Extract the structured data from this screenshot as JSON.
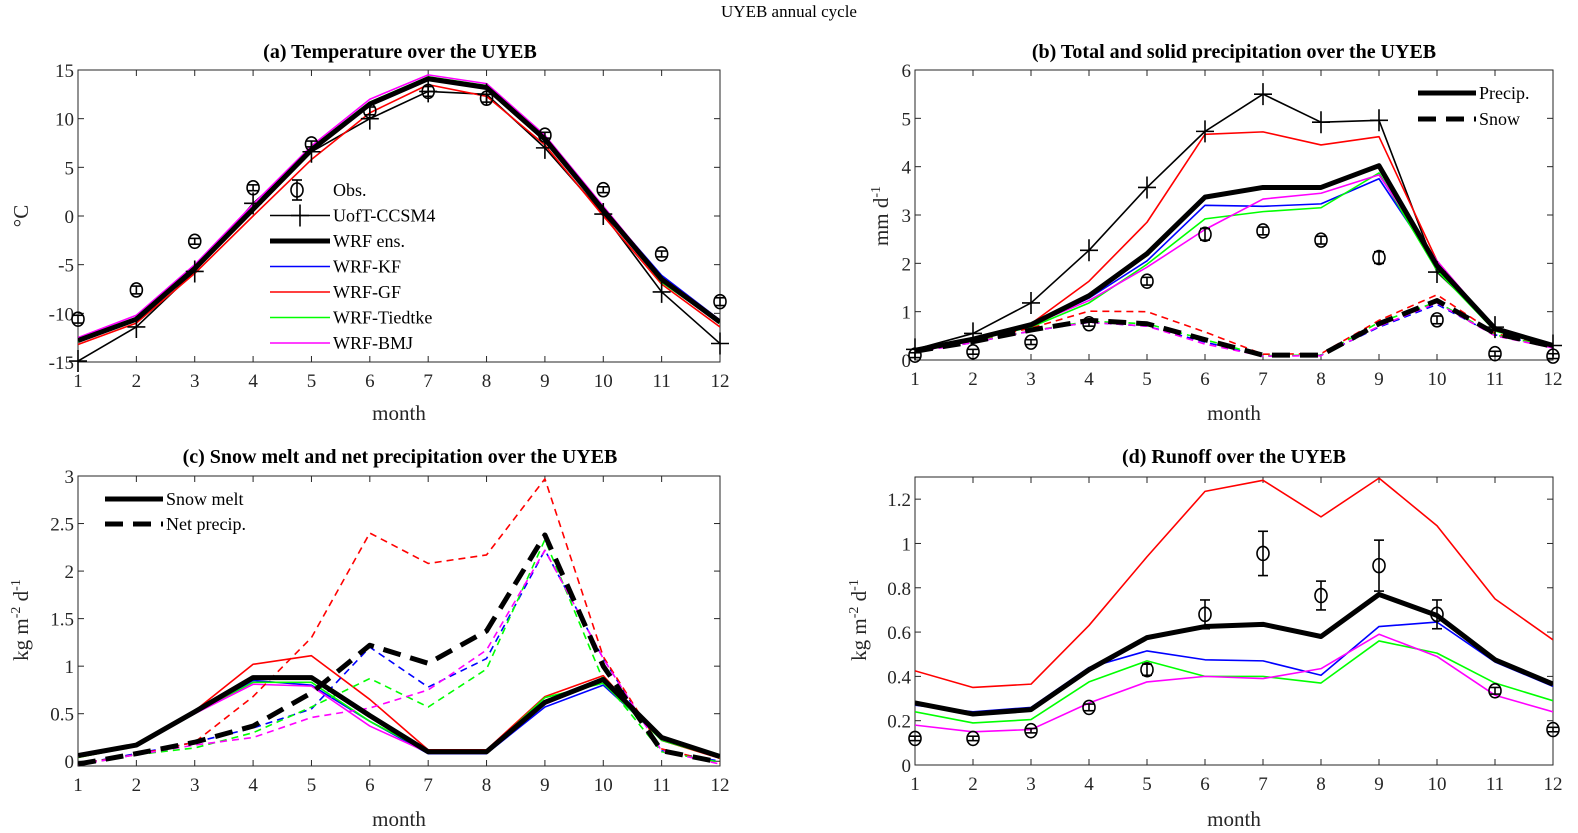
{
  "suptitle": "UYEB annual cycle",
  "colors": {
    "obs": "#000000",
    "UofT-CCSM4": "#000000",
    "WRF ens.": "#000000",
    "WRF-KF": "#0000ff",
    "WRF-GF": "#ff0000",
    "WRF-Tiedtke": "#00ff00",
    "WRF-BMJ": "#ff00ff"
  },
  "chart_data": [
    {
      "id": "a",
      "type": "line",
      "title": "(a) Temperature over the UYEB",
      "xlabel": "month",
      "ylabel": "°C",
      "x": [
        1,
        2,
        3,
        4,
        5,
        6,
        7,
        8,
        9,
        10,
        11,
        12
      ],
      "xlim": [
        1,
        12
      ],
      "ylim": [
        -15,
        15
      ],
      "yticks": [
        -15,
        -10,
        -5,
        0,
        5,
        10,
        15
      ],
      "grid": false,
      "legend": {
        "placement": "center",
        "entries": [
          "Obs.",
          "UofT-CCSM4",
          "WRF ens.",
          "WRF-KF",
          "WRF-GF",
          "WRF-Tiedtke",
          "WRF-BMJ"
        ]
      },
      "obs": {
        "name": "Obs.",
        "values": [
          -10.6,
          -7.6,
          -2.6,
          2.9,
          7.4,
          10.8,
          12.8,
          12.1,
          8.3,
          2.7,
          -3.9,
          -8.8
        ],
        "err": [
          0.4,
          0.4,
          0.3,
          0.3,
          0.3,
          0.4,
          0.5,
          0.4,
          0.3,
          0.3,
          0.3,
          0.4
        ]
      },
      "series": [
        {
          "name": "UofT-CCSM4",
          "style": "thin-plus",
          "values": [
            -14.9,
            -11.4,
            -5.7,
            1.3,
            6.6,
            10.0,
            12.8,
            12.5,
            7.0,
            0.2,
            -7.8,
            -13.1
          ]
        },
        {
          "name": "WRF ens.",
          "style": "thick",
          "values": [
            -12.8,
            -10.6,
            -5.4,
            0.7,
            6.8,
            11.5,
            14.1,
            13.2,
            7.9,
            0.6,
            -6.5,
            -10.9
          ]
        },
        {
          "name": "WRF-KF",
          "style": "thin",
          "values": [
            -12.8,
            -10.5,
            -5.4,
            0.8,
            6.9,
            11.6,
            14.2,
            13.3,
            8.0,
            0.8,
            -6.1,
            -10.7
          ]
        },
        {
          "name": "WRF-GF",
          "style": "thin",
          "values": [
            -13.2,
            -11.0,
            -5.9,
            0.0,
            5.8,
            10.6,
            13.5,
            12.3,
            7.3,
            0.0,
            -7.0,
            -11.4
          ]
        },
        {
          "name": "WRF-Tiedtke",
          "style": "thin",
          "values": [
            -12.9,
            -10.5,
            -5.3,
            0.9,
            7.0,
            11.7,
            14.3,
            13.4,
            8.0,
            0.6,
            -6.8,
            -11.0
          ]
        },
        {
          "name": "WRF-BMJ",
          "style": "thin",
          "values": [
            -12.5,
            -10.2,
            -5.0,
            1.2,
            7.2,
            12.0,
            14.5,
            13.6,
            8.3,
            1.0,
            -6.3,
            -10.7
          ]
        }
      ]
    },
    {
      "id": "b",
      "type": "line",
      "title": "(b) Total and solid precipitation over the UYEB",
      "xlabel": "month",
      "ylabel": "mm d-1",
      "ylabel_main": "mm d",
      "ylabel_sup": "-1",
      "x": [
        1,
        2,
        3,
        4,
        5,
        6,
        7,
        8,
        9,
        10,
        11,
        12
      ],
      "xlim": [
        1,
        12
      ],
      "ylim": [
        0,
        6
      ],
      "yticks": [
        0,
        1,
        2,
        3,
        4,
        5,
        6
      ],
      "grid": false,
      "legend": {
        "placement": "top-right",
        "entries": [
          "Precip.",
          "Snow"
        ]
      },
      "obs": {
        "name": "Obs.",
        "values": [
          0.1,
          0.17,
          0.37,
          0.75,
          1.63,
          2.6,
          2.67,
          2.48,
          2.12,
          0.83,
          0.13,
          0.08
        ],
        "err": [
          0.05,
          0.05,
          0.05,
          0.05,
          0.08,
          0.12,
          0.08,
          0.08,
          0.12,
          0.08,
          0.05,
          0.05
        ]
      },
      "series": [
        {
          "name": "UofT-CCSM4",
          "kind": "precip",
          "style": "thin-plus",
          "values": [
            0.22,
            0.55,
            1.18,
            2.27,
            3.57,
            4.73,
            5.5,
            4.92,
            4.96,
            1.82,
            0.68,
            0.3
          ]
        },
        {
          "name": "WRF ens.",
          "kind": "precip",
          "style": "thick",
          "values": [
            0.2,
            0.43,
            0.73,
            1.33,
            2.2,
            3.37,
            3.57,
            3.57,
            4.02,
            1.95,
            0.65,
            0.3
          ]
        },
        {
          "name": "WRF-KF",
          "kind": "precip",
          "style": "thin",
          "values": [
            0.2,
            0.43,
            0.72,
            1.28,
            2.05,
            3.2,
            3.18,
            3.23,
            3.75,
            1.95,
            0.63,
            0.32
          ]
        },
        {
          "name": "WRF-GF",
          "kind": "precip",
          "style": "thin",
          "values": [
            0.2,
            0.43,
            0.75,
            1.63,
            2.85,
            4.67,
            4.72,
            4.45,
            4.62,
            2.05,
            0.62,
            0.3
          ]
        },
        {
          "name": "WRF-Tiedtke",
          "kind": "precip",
          "style": "thin",
          "values": [
            0.2,
            0.42,
            0.68,
            1.18,
            1.98,
            2.92,
            3.07,
            3.15,
            3.87,
            1.85,
            0.6,
            0.28
          ]
        },
        {
          "name": "WRF-BMJ",
          "kind": "precip",
          "style": "thin",
          "values": [
            0.18,
            0.4,
            0.72,
            1.23,
            1.92,
            2.7,
            3.33,
            3.45,
            3.83,
            2.05,
            0.65,
            0.28
          ]
        },
        {
          "name": "WRF ens.",
          "kind": "snow",
          "style": "thick-dash",
          "values": [
            0.18,
            0.38,
            0.62,
            0.82,
            0.75,
            0.42,
            0.1,
            0.1,
            0.75,
            1.23,
            0.55,
            0.28
          ]
        },
        {
          "name": "WRF-KF",
          "kind": "snow",
          "style": "dash",
          "values": [
            0.17,
            0.36,
            0.6,
            0.78,
            0.7,
            0.37,
            0.08,
            0.1,
            0.68,
            1.15,
            0.52,
            0.27
          ]
        },
        {
          "name": "WRF-GF",
          "kind": "snow",
          "style": "dash",
          "values": [
            0.19,
            0.4,
            0.66,
            1.01,
            1.0,
            0.58,
            0.12,
            0.13,
            0.82,
            1.35,
            0.55,
            0.27
          ]
        },
        {
          "name": "WRF-Tiedtke",
          "kind": "snow",
          "style": "dash",
          "values": [
            0.18,
            0.38,
            0.6,
            0.8,
            0.75,
            0.42,
            0.09,
            0.1,
            0.78,
            1.2,
            0.52,
            0.27
          ]
        },
        {
          "name": "WRF-BMJ",
          "kind": "snow",
          "style": "dash",
          "values": [
            0.16,
            0.36,
            0.6,
            0.78,
            0.7,
            0.33,
            0.08,
            0.09,
            0.7,
            1.18,
            0.5,
            0.25
          ]
        }
      ]
    },
    {
      "id": "c",
      "type": "line",
      "title": "(c) Snow melt and net precipitation over the UYEB",
      "xlabel": "month",
      "ylabel": "kg m-2 d-1",
      "ylabel_parts": [
        "kg m",
        "-2",
        " d",
        "-1"
      ],
      "x": [
        1,
        2,
        3,
        4,
        5,
        6,
        7,
        8,
        9,
        10,
        11,
        12
      ],
      "xlim": [
        1,
        12
      ],
      "ylim": [
        -0.05,
        3
      ],
      "yticks": [
        0,
        0.5,
        1,
        1.5,
        2,
        2.5,
        3
      ],
      "ytick_labels": [
        "0",
        "0.5",
        "1",
        "1.5",
        "2",
        "2.5",
        "3"
      ],
      "grid": false,
      "legend": {
        "placement": "top-left",
        "entries": [
          "Snow melt",
          "Net precip."
        ]
      },
      "series": [
        {
          "name": "WRF ens.",
          "kind": "melt",
          "style": "thick",
          "values": [
            0.06,
            0.17,
            0.52,
            0.88,
            0.88,
            0.48,
            0.1,
            0.1,
            0.62,
            0.86,
            0.25,
            0.05
          ]
        },
        {
          "name": "WRF-KF",
          "kind": "melt",
          "style": "thin",
          "values": [
            0.05,
            0.16,
            0.5,
            0.85,
            0.8,
            0.42,
            0.08,
            0.08,
            0.57,
            0.8,
            0.24,
            0.05
          ]
        },
        {
          "name": "WRF-GF",
          "kind": "melt",
          "style": "thin",
          "values": [
            0.04,
            0.16,
            0.53,
            1.02,
            1.11,
            0.65,
            0.12,
            0.12,
            0.68,
            0.9,
            0.22,
            0.03
          ]
        },
        {
          "name": "WRF-Tiedtke",
          "kind": "melt",
          "style": "thin",
          "values": [
            0.04,
            0.16,
            0.5,
            0.83,
            0.83,
            0.42,
            0.1,
            0.1,
            0.67,
            0.82,
            0.22,
            0.04
          ]
        },
        {
          "name": "WRF-BMJ",
          "kind": "melt",
          "style": "thin",
          "values": [
            0.05,
            0.16,
            0.5,
            0.81,
            0.79,
            0.37,
            0.09,
            0.1,
            0.6,
            0.85,
            0.23,
            0.05
          ]
        },
        {
          "name": "WRF ens.",
          "kind": "net",
          "style": "thick-dash",
          "values": [
            -0.03,
            0.08,
            0.2,
            0.37,
            0.72,
            1.22,
            1.03,
            1.37,
            2.38,
            1.0,
            0.11,
            -0.01
          ]
        },
        {
          "name": "WRF-KF",
          "kind": "net",
          "style": "dash",
          "values": [
            -0.03,
            0.08,
            0.2,
            0.35,
            0.55,
            1.2,
            0.78,
            1.08,
            2.22,
            1.08,
            0.11,
            0.0
          ]
        },
        {
          "name": "WRF-GF",
          "kind": "net",
          "style": "dash",
          "values": [
            -0.03,
            0.07,
            0.2,
            0.68,
            1.3,
            2.4,
            2.08,
            2.17,
            2.97,
            1.1,
            0.13,
            -0.02
          ]
        },
        {
          "name": "WRF-Tiedtke",
          "kind": "net",
          "style": "dash",
          "values": [
            -0.04,
            0.07,
            0.14,
            0.3,
            0.57,
            0.87,
            0.57,
            0.97,
            2.33,
            0.85,
            0.1,
            -0.01
          ]
        },
        {
          "name": "WRF-BMJ",
          "kind": "net",
          "style": "dash",
          "values": [
            -0.04,
            0.07,
            0.17,
            0.25,
            0.46,
            0.56,
            0.75,
            1.17,
            2.22,
            1.08,
            0.11,
            -0.03
          ]
        }
      ]
    },
    {
      "id": "d",
      "type": "line",
      "title": "(d) Runoff over the UYEB",
      "xlabel": "month",
      "ylabel": "kg m-2 d-1",
      "ylabel_parts": [
        "kg m",
        "-2",
        " d",
        "-1"
      ],
      "x": [
        1,
        2,
        3,
        4,
        5,
        6,
        7,
        8,
        9,
        10,
        11,
        12
      ],
      "xlim": [
        1,
        12
      ],
      "ylim": [
        0,
        1.3
      ],
      "yticks": [
        0,
        0.2,
        0.4,
        0.6,
        0.8,
        1,
        1.2
      ],
      "ytick_labels": [
        "0",
        "0.2",
        "0.4",
        "0.6",
        "0.8",
        "1",
        "1.2"
      ],
      "grid": false,
      "obs": {
        "name": "Obs.",
        "values": [
          0.12,
          0.12,
          0.155,
          0.26,
          0.43,
          0.68,
          0.955,
          0.765,
          0.9,
          0.68,
          0.335,
          0.16
        ],
        "err": [
          0.01,
          0.01,
          0.01,
          0.015,
          0.025,
          0.065,
          0.1,
          0.065,
          0.115,
          0.065,
          0.015,
          0.01
        ]
      },
      "series": [
        {
          "name": "WRF ens.",
          "style": "thick",
          "values": [
            0.28,
            0.23,
            0.25,
            0.43,
            0.575,
            0.625,
            0.635,
            0.58,
            0.77,
            0.675,
            0.475,
            0.365
          ]
        },
        {
          "name": "WRF-KF",
          "style": "thin",
          "values": [
            0.27,
            0.24,
            0.26,
            0.44,
            0.515,
            0.475,
            0.47,
            0.405,
            0.625,
            0.645,
            0.465,
            0.355
          ]
        },
        {
          "name": "WRF-GF",
          "style": "thin",
          "values": [
            0.425,
            0.35,
            0.365,
            0.63,
            0.94,
            1.235,
            1.285,
            1.12,
            1.295,
            1.08,
            0.75,
            0.565
          ]
        },
        {
          "name": "WRF-Tiedtke",
          "style": "thin",
          "values": [
            0.24,
            0.19,
            0.205,
            0.375,
            0.47,
            0.4,
            0.4,
            0.37,
            0.56,
            0.505,
            0.37,
            0.29
          ]
        },
        {
          "name": "WRF-BMJ",
          "style": "thin",
          "values": [
            0.18,
            0.15,
            0.16,
            0.28,
            0.375,
            0.4,
            0.39,
            0.435,
            0.59,
            0.49,
            0.315,
            0.24
          ]
        }
      ]
    }
  ]
}
